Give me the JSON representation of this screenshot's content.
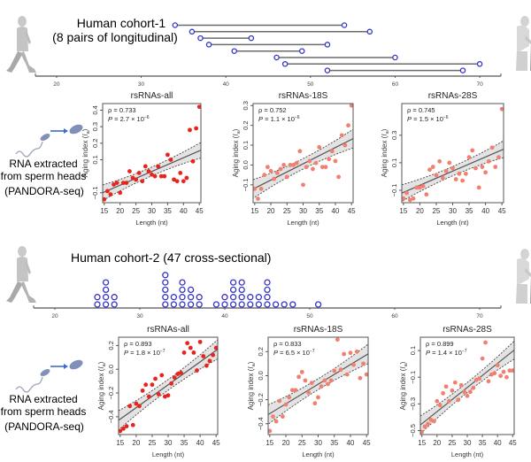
{
  "cohort1": {
    "title_line1": "Human cohort-1",
    "title_line2": "(8 pairs of longitudinal)",
    "axis_ticks": [
      20,
      30,
      40,
      50,
      60,
      70
    ],
    "axis_range": [
      17.5,
      72.5
    ],
    "pairs": [
      [
        34,
        54
      ],
      [
        36,
        57
      ],
      [
        37,
        43
      ],
      [
        38,
        52
      ],
      [
        41,
        49
      ],
      [
        46,
        60
      ],
      [
        47,
        70
      ],
      [
        52,
        68
      ]
    ],
    "point_color": "#3535c8"
  },
  "cohort2": {
    "title": "Human cohort-2 (47 cross-sectional)",
    "axis_ticks": [
      20,
      30,
      40,
      50,
      60,
      70
    ],
    "axis_range": [
      17.5,
      72.5
    ],
    "age_counts": [
      [
        25,
        2
      ],
      [
        26,
        4
      ],
      [
        27,
        2
      ],
      [
        33,
        5
      ],
      [
        34,
        2
      ],
      [
        35,
        4
      ],
      [
        36,
        3
      ],
      [
        37,
        2
      ],
      [
        39,
        1
      ],
      [
        40,
        2
      ],
      [
        41,
        4
      ],
      [
        42,
        4
      ],
      [
        43,
        2
      ],
      [
        44,
        2
      ],
      [
        45,
        4
      ],
      [
        46,
        1
      ],
      [
        47,
        1
      ],
      [
        48,
        1
      ],
      [
        51,
        1
      ]
    ],
    "point_color": "#3535c8"
  },
  "side_labels": {
    "line1": "RNA extracted",
    "line2": "from sperm heads",
    "line3": "(PANDORA-seq)"
  },
  "chart_data": [
    {
      "id": "c1-all",
      "type": "scatter",
      "title": "rsRNAs-all",
      "xlabel": "Length (nt)",
      "ylabel": "Aging index (I_a)",
      "rho": "ρ = 0.733",
      "p_prefix": "P",
      "p_text": " = 2.7 × 10",
      "p_exp": "−6",
      "xlim": [
        14.5,
        45.5
      ],
      "ylim": [
        -0.16,
        0.44
      ],
      "xticks": [
        15,
        20,
        25,
        30,
        35,
        40,
        45
      ],
      "yticks": [
        -0.1,
        0.1,
        0.2,
        0.3,
        0.4
      ],
      "ytick_labels": [
        "−0.1",
        "0.1",
        "0.2",
        "0.3",
        "0.4"
      ],
      "color": "#e8241c",
      "fit": {
        "slope": 0.0083,
        "intercept": -0.22,
        "band": 0.035
      },
      "x": [
        15,
        16,
        17,
        18,
        19,
        20,
        21,
        22,
        23,
        24,
        25,
        26,
        27,
        28,
        29,
        30,
        31,
        32,
        33,
        34,
        35,
        36,
        37,
        38,
        39,
        40,
        41,
        42,
        43,
        44,
        45
      ],
      "y": [
        -0.14,
        -0.09,
        -0.11,
        -0.05,
        -0.04,
        -0.1,
        -0.04,
        -0.04,
        0.03,
        -0.01,
        -0.02,
        0.02,
        -0.03,
        0.06,
        0.03,
        0.01,
        0.0,
        0.06,
        0.0,
        0.0,
        0.13,
        0.1,
        -0.02,
        -0.03,
        0.02,
        -0.03,
        -0.01,
        0.28,
        0.09,
        0.29,
        0.42
      ]
    },
    {
      "id": "c1-18s",
      "type": "scatter",
      "title": "rsRNAs-18S",
      "xlabel": "Length (nt)",
      "ylabel": "Aging index (I_a)",
      "rho": "ρ = 0.752",
      "p_prefix": "P",
      "p_text": " = 1.1 × 10",
      "p_exp": "−6",
      "xlim": [
        14.5,
        45.5
      ],
      "ylim": [
        -0.19,
        0.31
      ],
      "xticks": [
        15,
        20,
        25,
        30,
        35,
        40,
        45
      ],
      "yticks": [
        -0.1,
        0.0,
        0.1,
        0.2,
        0.3
      ],
      "ytick_labels": [
        "−0.1",
        "0.0",
        "0.1",
        "0.2",
        "0.3"
      ],
      "color": "#f08070",
      "fit": {
        "slope": 0.0082,
        "intercept": -0.24,
        "band": 0.035
      },
      "x": [
        15,
        16,
        17,
        18,
        19,
        20,
        21,
        22,
        23,
        24,
        25,
        26,
        27,
        28,
        29,
        30,
        31,
        32,
        33,
        34,
        35,
        36,
        37,
        38,
        39,
        40,
        41,
        42,
        43,
        44,
        45
      ],
      "y": [
        -0.12,
        -0.17,
        -0.12,
        -0.05,
        -0.01,
        -0.03,
        -0.07,
        -0.04,
        -0.02,
        0.0,
        -0.06,
        0.0,
        0.0,
        0.01,
        0.07,
        -0.1,
        -0.01,
        0.02,
        -0.02,
        0.01,
        0.09,
        -0.01,
        -0.01,
        0.03,
        0.07,
        0.02,
        -0.06,
        0.15,
        0.1,
        0.2,
        0.3
      ]
    },
    {
      "id": "c1-28s",
      "type": "scatter",
      "title": "rsRNAs-28S",
      "xlabel": "Length (nt)",
      "ylabel": "Aging index (I_a)",
      "rho": "ρ = 0.745",
      "p_prefix": "P",
      "p_text": " = 1.5 × 10",
      "p_exp": "−6",
      "xlim": [
        14.5,
        45.5
      ],
      "ylim": [
        -0.19,
        0.53
      ],
      "xticks": [
        15,
        20,
        25,
        30,
        35,
        40,
        45
      ],
      "yticks": [
        -0.1,
        0.1,
        0.3
      ],
      "ytick_labels": [
        "−0.1",
        "0.1",
        "0.3"
      ],
      "color": "#f08070",
      "fit": {
        "slope": 0.0103,
        "intercept": -0.27,
        "band": 0.045
      },
      "x": [
        15,
        16,
        17,
        18,
        19,
        20,
        21,
        22,
        23,
        24,
        25,
        26,
        27,
        28,
        29,
        30,
        31,
        32,
        33,
        34,
        35,
        36,
        37,
        38,
        39,
        40,
        41,
        42,
        43,
        44,
        45
      ],
      "y": [
        -0.16,
        -0.12,
        -0.17,
        -0.16,
        -0.08,
        -0.08,
        -0.07,
        -0.13,
        0.05,
        0.07,
        0.01,
        0.11,
        -0.01,
        0.04,
        0.1,
        0.06,
        -0.02,
        0.02,
        -0.03,
        0.02,
        0.14,
        0.19,
        0.06,
        -0.08,
        0.07,
        0.03,
        0.11,
        0.21,
        0.07,
        0.14,
        0.49
      ]
    },
    {
      "id": "c2-all",
      "type": "scatter",
      "title": "rsRNAs-all",
      "xlabel": "Length (nt)",
      "ylabel": "Aging index (I_a)",
      "rho": "ρ = 0.893",
      "p_prefix": "P",
      "p_text": " = 1.8 × 10",
      "p_exp": "−7",
      "xlim": [
        14.5,
        45.5
      ],
      "ylim": [
        -0.55,
        0.27
      ],
      "xticks": [
        15,
        20,
        25,
        30,
        35,
        40,
        45
      ],
      "yticks": [
        -0.4,
        -0.2,
        0.0,
        0.2
      ],
      "ytick_labels": [
        "−0.4",
        "−0.2",
        "0.0",
        "0.2"
      ],
      "color": "#e8241c",
      "fit": {
        "slope": 0.0193,
        "intercept": -0.71,
        "band": 0.06
      },
      "x": [
        15,
        16,
        17,
        18,
        19,
        20,
        21,
        22,
        23,
        24,
        25,
        26,
        27,
        28,
        29,
        30,
        31,
        32,
        33,
        34,
        35,
        36,
        37,
        38,
        39,
        40,
        41,
        42,
        43,
        44,
        45
      ],
      "y": [
        -0.52,
        -0.5,
        -0.48,
        -0.31,
        -0.47,
        -0.29,
        -0.31,
        -0.18,
        -0.13,
        -0.23,
        -0.13,
        -0.08,
        -0.21,
        -0.05,
        -0.23,
        -0.22,
        -0.12,
        -0.07,
        -0.04,
        -0.03,
        0.14,
        0.22,
        0.18,
        0.14,
        -0.01,
        0.23,
        0.11,
        0.03,
        0.07,
        0.12,
        0.18
      ]
    },
    {
      "id": "c2-18s",
      "type": "scatter",
      "title": "rsRNAs-18S",
      "xlabel": "Length (nt)",
      "ylabel": "Aging index (I_a)",
      "rho": "ρ = 0.833",
      "p_prefix": "P",
      "p_text": " = 6.5 × 10",
      "p_exp": "−7",
      "xlim": [
        14.5,
        45.5
      ],
      "ylim": [
        -0.49,
        0.32
      ],
      "xticks": [
        15,
        20,
        25,
        30,
        35,
        40,
        45
      ],
      "yticks": [
        -0.4,
        -0.2,
        0.0,
        0.2
      ],
      "ytick_labels": [
        "−0.4",
        "−0.2",
        "0.0",
        "0.2"
      ],
      "color": "#f08070",
      "fit": {
        "slope": 0.0163,
        "intercept": -0.56,
        "band": 0.06
      },
      "x": [
        15,
        16,
        17,
        18,
        19,
        20,
        21,
        22,
        23,
        24,
        25,
        26,
        27,
        28,
        29,
        30,
        31,
        32,
        33,
        34,
        35,
        36,
        37,
        38,
        39,
        40,
        41,
        42,
        43,
        44,
        45
      ],
      "y": [
        -0.46,
        -0.34,
        -0.38,
        -0.21,
        -0.34,
        -0.24,
        -0.18,
        -0.12,
        -0.12,
        -0.01,
        0.03,
        -0.04,
        -0.14,
        -0.06,
        -0.23,
        -0.18,
        -0.09,
        -0.04,
        -0.07,
        -0.04,
        0.04,
        0.3,
        0.05,
        0.18,
        0.01,
        0.19,
        0.09,
        0.2,
        -0.02,
        0.1,
        0.01
      ]
    },
    {
      "id": "c2-28s",
      "type": "scatter",
      "title": "rsRNAs-28S",
      "xlabel": "Length (nt)",
      "ylabel": "Aging index (I_a)",
      "rho": "ρ = 0.899",
      "p_prefix": "P",
      "p_text": " = 1.4 × 10",
      "p_exp": "−7",
      "xlim": [
        14.5,
        45.5
      ],
      "ylim": [
        -0.53,
        0.2
      ],
      "xticks": [
        15,
        20,
        25,
        30,
        35,
        40,
        45
      ],
      "yticks": [
        -0.5,
        -0.3,
        -0.1,
        0.1
      ],
      "ytick_labels": [
        "−0.5",
        "−0.3",
        "−0.1",
        "0.1"
      ],
      "color": "#f08070",
      "fit": {
        "slope": 0.0181,
        "intercept": -0.72,
        "band": 0.05
      },
      "x": [
        15,
        16,
        17,
        18,
        19,
        20,
        21,
        22,
        23,
        24,
        25,
        26,
        27,
        28,
        29,
        30,
        31,
        32,
        33,
        34,
        35,
        36,
        37,
        38,
        39,
        40,
        41,
        42,
        43,
        44,
        45
      ],
      "y": [
        -0.51,
        -0.47,
        -0.45,
        -0.42,
        -0.43,
        -0.28,
        -0.31,
        -0.22,
        -0.17,
        -0.28,
        -0.2,
        -0.14,
        -0.27,
        -0.16,
        -0.21,
        -0.24,
        -0.21,
        -0.18,
        -0.12,
        -0.11,
        0.04,
        0.16,
        -0.13,
        -0.08,
        -0.07,
        -0.01,
        -0.09,
        -0.06,
        -0.1,
        -0.05,
        -0.05
      ]
    }
  ]
}
